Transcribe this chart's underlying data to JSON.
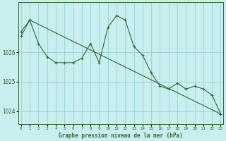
{
  "line1_x": [
    0,
    1,
    2,
    3,
    4,
    5,
    6,
    7,
    8,
    9,
    10,
    11,
    12,
    13,
    14,
    15,
    16,
    17,
    18,
    19,
    20,
    21,
    22,
    23
  ],
  "line1_y": [
    1026.55,
    1027.1,
    1026.3,
    1025.85,
    1025.65,
    1025.65,
    1025.65,
    1025.8,
    1026.3,
    1025.65,
    1026.85,
    1027.25,
    1027.1,
    1026.2,
    1025.9,
    1025.3,
    1024.85,
    1024.75,
    1024.95,
    1024.75,
    1024.85,
    1024.75,
    1024.55,
    1023.9
  ],
  "line2_x": [
    0,
    1,
    23
  ],
  "line2_y": [
    1026.7,
    1027.1,
    1023.9
  ],
  "title": "Graphe pression niveau de la mer (hPa)",
  "bg_color": "#c8eef0",
  "line_color": "#2d6a2d",
  "grid_color": "#90d4d4",
  "yticks": [
    1024,
    1025,
    1026
  ],
  "ylim": [
    1023.55,
    1027.7
  ],
  "xlim": [
    -0.3,
    23.3
  ],
  "xtick_labels": [
    "0",
    "1",
    "2",
    "3",
    "4",
    "5",
    "6",
    "7",
    "8",
    "9",
    "10",
    "11",
    "12",
    "13",
    "14",
    "15",
    "16",
    "17",
    "18",
    "19",
    "20",
    "21",
    "22",
    "23"
  ]
}
